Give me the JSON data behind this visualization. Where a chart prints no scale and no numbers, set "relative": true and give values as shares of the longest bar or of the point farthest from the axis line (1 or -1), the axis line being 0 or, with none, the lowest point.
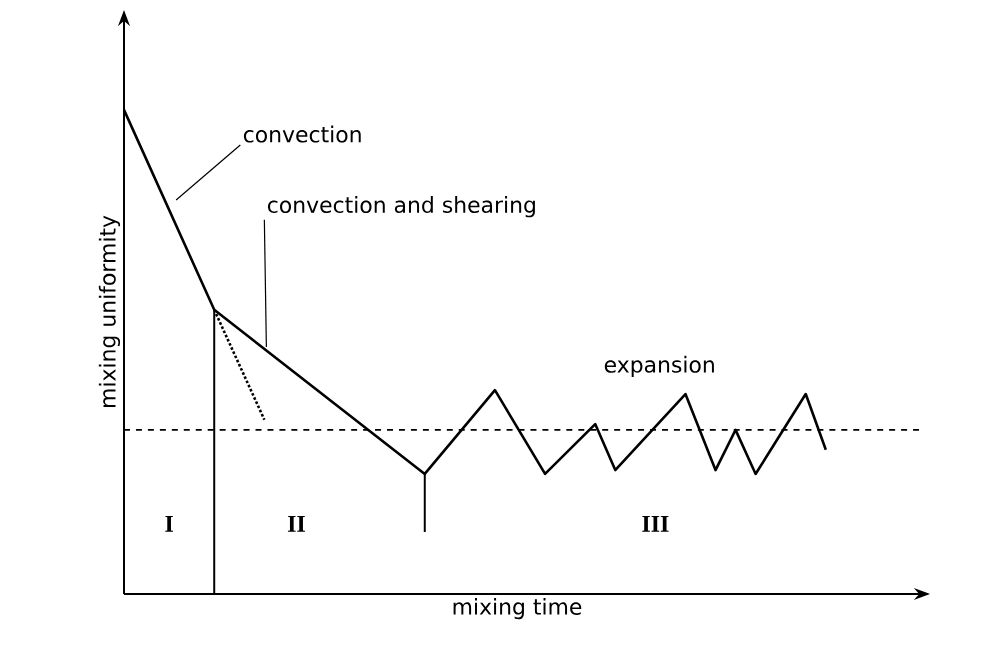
{
  "chart_data": {
    "type": "line",
    "relative": true,
    "xlabel": "mixing time",
    "ylabel": "mixing uniformity",
    "marker": "none",
    "categories": [
      null,
      null,
      null,
      null,
      null,
      null,
      null,
      null,
      null,
      null,
      null,
      null,
      null,
      null,
      null,
      null,
      null,
      null,
      null,
      null,
      null,
      null,
      null,
      null,
      null,
      null,
      null,
      null,
      null,
      null,
      null,
      null,
      null,
      null,
      null,
      null,
      null,
      null,
      null,
      null,
      null,
      null,
      null,
      null,
      null,
      null,
      null,
      null,
      null,
      null,
      null,
      null,
      null,
      null,
      null,
      null,
      null,
      null,
      null,
      null,
      null,
      null,
      null,
      null,
      null,
      null,
      null,
      null,
      null,
      null,
      null
    ],
    "series": [
      {
        "color": "#000000",
        "line_style": "solid",
        "values": [
          1,
          null,
          null,
          null,
          null,
          null,
          null,
          null,
          null,
          0.587,
          null,
          null,
          null,
          null,
          null,
          null,
          null,
          null,
          null,
          null,
          null,
          null,
          null,
          null,
          null,
          null,
          null,
          null,
          null,
          null,
          0.248,
          null,
          null,
          null,
          null,
          null,
          null,
          0.421,
          null,
          null,
          null,
          null,
          0.248,
          null,
          null,
          null,
          null,
          0.351,
          null,
          0.256,
          null,
          null,
          null,
          null,
          null,
          null,
          0.413,
          null,
          null,
          0.256,
          null,
          0.339,
          null,
          0.248,
          null,
          null,
          null,
          null,
          0.413,
          null,
          0.298
        ]
      },
      {
        "type": "line",
        "color": "#000000",
        "line_style": "dotted",
        "values": [
          null,
          null,
          null,
          null,
          null,
          null,
          null,
          null,
          null,
          0.587,
          null,
          null,
          null,
          null,
          0.36,
          null,
          null,
          null,
          null,
          null,
          null,
          null,
          null,
          null,
          null,
          null,
          null,
          null,
          null,
          null,
          null,
          null,
          null,
          null,
          null,
          null,
          null,
          null,
          null,
          null,
          null,
          null,
          null,
          null,
          null,
          null,
          null,
          null,
          null,
          null,
          null,
          null,
          null,
          null,
          null,
          null,
          null,
          null,
          null,
          null,
          null,
          null,
          null,
          null,
          null,
          null,
          null,
          null,
          null,
          null,
          null
        ]
      }
    ],
    "ref_lines": [
      {
        "axis": "y",
        "value": 0.339,
        "line_style": "dashed"
      }
    ],
    "annotations": [
      "convection",
      "convection and shearing",
      "expansion",
      "I",
      "II",
      "III"
    ]
  }
}
